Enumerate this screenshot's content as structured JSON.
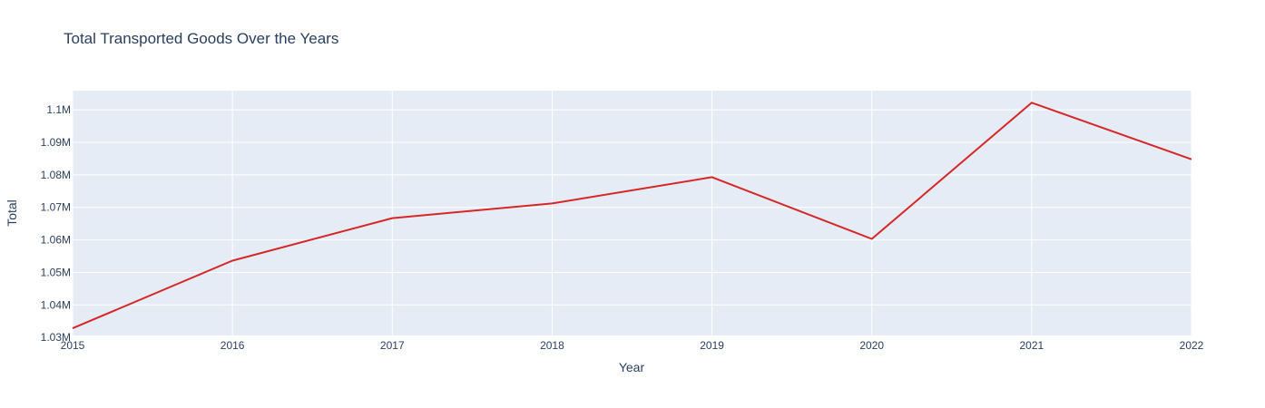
{
  "chart_data": {
    "type": "line",
    "title": "Total Transported Goods Over the Years",
    "xlabel": "Year",
    "ylabel": "Total",
    "x": [
      2015,
      2016,
      2017,
      2018,
      2019,
      2020,
      2021,
      2022
    ],
    "series": [
      {
        "values": [
          1032800,
          1053600,
          1066700,
          1071200,
          1079300,
          1060300,
          1102200,
          1084800
        ],
        "color": "#d62728"
      }
    ],
    "xlim": [
      2015,
      2022
    ],
    "ylim": [
      1030600,
      1105900
    ],
    "x_ticks": [
      2015,
      2016,
      2017,
      2018,
      2019,
      2020,
      2021,
      2022
    ],
    "y_ticks": [
      1030000,
      1040000,
      1050000,
      1060000,
      1070000,
      1080000,
      1090000,
      1100000
    ],
    "y_tick_labels": [
      "1.03M",
      "1.04M",
      "1.05M",
      "1.06M",
      "1.07M",
      "1.08M",
      "1.09M",
      "1.1M"
    ],
    "grid": true,
    "plot_bgcolor": "#e5ecf6",
    "grid_color": "#ffffff",
    "text_color": "#2a3f5f"
  }
}
